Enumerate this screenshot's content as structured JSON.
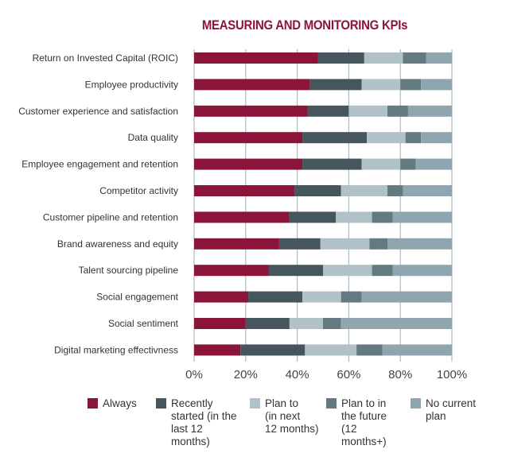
{
  "chart_data": {
    "type": "bar",
    "orientation": "horizontal",
    "stacked": true,
    "title": "MEASURING AND MONITORING KPIs",
    "categories": [
      "Return on Invested Capital (ROIC)",
      "Employee productivity",
      "Customer experience and satisfaction",
      "Data quality",
      "Employee engagement and retention",
      "Competitor activity",
      "Customer pipeline and retention",
      "Brand awareness and equity",
      "Talent sourcing pipeline",
      "Social engagement",
      "Social sentiment",
      "Digital marketing effectivness"
    ],
    "series": [
      {
        "name": "Always",
        "color": "#8b1538",
        "values": [
          48,
          45,
          44,
          42,
          42,
          39,
          37,
          33,
          29,
          21,
          20,
          18
        ]
      },
      {
        "name": "Recently started (in the last 12 months)",
        "color": "#46565e",
        "values": [
          18,
          20,
          16,
          25,
          23,
          18,
          18,
          16,
          21,
          21,
          17,
          25
        ]
      },
      {
        "name": "Plan to (in next 12 months)",
        "color": "#b0c2c8",
        "values": [
          15,
          15,
          15,
          15,
          15,
          18,
          14,
          19,
          19,
          15,
          13,
          20
        ]
      },
      {
        "name": "Plan to in the future (12 months+)",
        "color": "#627a80",
        "values": [
          9,
          8,
          8,
          6,
          6,
          6,
          8,
          7,
          8,
          8,
          7,
          10
        ]
      },
      {
        "name": "No current plan",
        "color": "#8fa5b0",
        "values": [
          10,
          12,
          17,
          12,
          14,
          19,
          23,
          25,
          23,
          35,
          43,
          27
        ]
      }
    ],
    "xlim": [
      0,
      100
    ],
    "xticks": [
      "0%",
      "20%",
      "40%",
      "60%",
      "80%",
      "100%"
    ],
    "grid": true,
    "legend": "bottom",
    "legend_labels": [
      [
        "Always"
      ],
      [
        "Recently",
        "started (in the",
        "last 12 months)"
      ],
      [
        "Plan to",
        "(in next",
        "12 months)"
      ],
      [
        "Plan to in",
        "the future",
        "(12 months+)"
      ],
      [
        "No current",
        "plan"
      ]
    ]
  }
}
